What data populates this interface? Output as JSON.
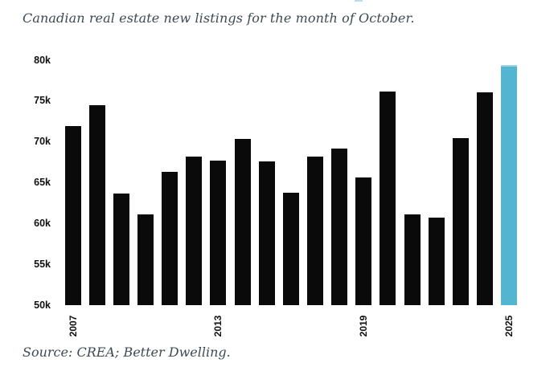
{
  "page": {
    "title": "Canadian real estate new listings for the month of October.",
    "source": "Source: CREA; Better Dwelling."
  },
  "chart_data": {
    "type": "bar",
    "title": "Canadian real estate new listings for the month of October.",
    "source": "Source: CREA; Better Dwelling.",
    "categories": [
      "2007",
      "2008",
      "2009",
      "2010",
      "2011",
      "2012",
      "2013",
      "2014",
      "2015",
      "2016",
      "2017",
      "2018",
      "2019",
      "2020",
      "2021",
      "2022",
      "2023",
      "2024",
      "2025"
    ],
    "values": [
      71.9,
      74.5,
      63.7,
      61.1,
      66.3,
      68.2,
      67.7,
      70.4,
      67.6,
      63.8,
      68.2,
      69.2,
      65.6,
      76.2,
      61.1,
      60.7,
      70.5,
      76.1,
      79.4
    ],
    "unit": "k",
    "value_meaning": "new listings, thousands",
    "ylim": [
      50,
      80
    ],
    "yticks": [
      "50k",
      "55k",
      "60k",
      "65k",
      "70k",
      "75k",
      "80k"
    ],
    "xticks_shown": [
      "2007",
      "2013",
      "2019",
      "2025"
    ],
    "grid": false,
    "legend": "none",
    "bar_color": "#0a0a0a",
    "highlight_category": "2025",
    "highlight_index": 18,
    "highlight_color": "#54b5d2",
    "highlight_top_edge_color": "#9fd0e2",
    "text_color": "#3d4a52",
    "tick_color": "#111111"
  }
}
